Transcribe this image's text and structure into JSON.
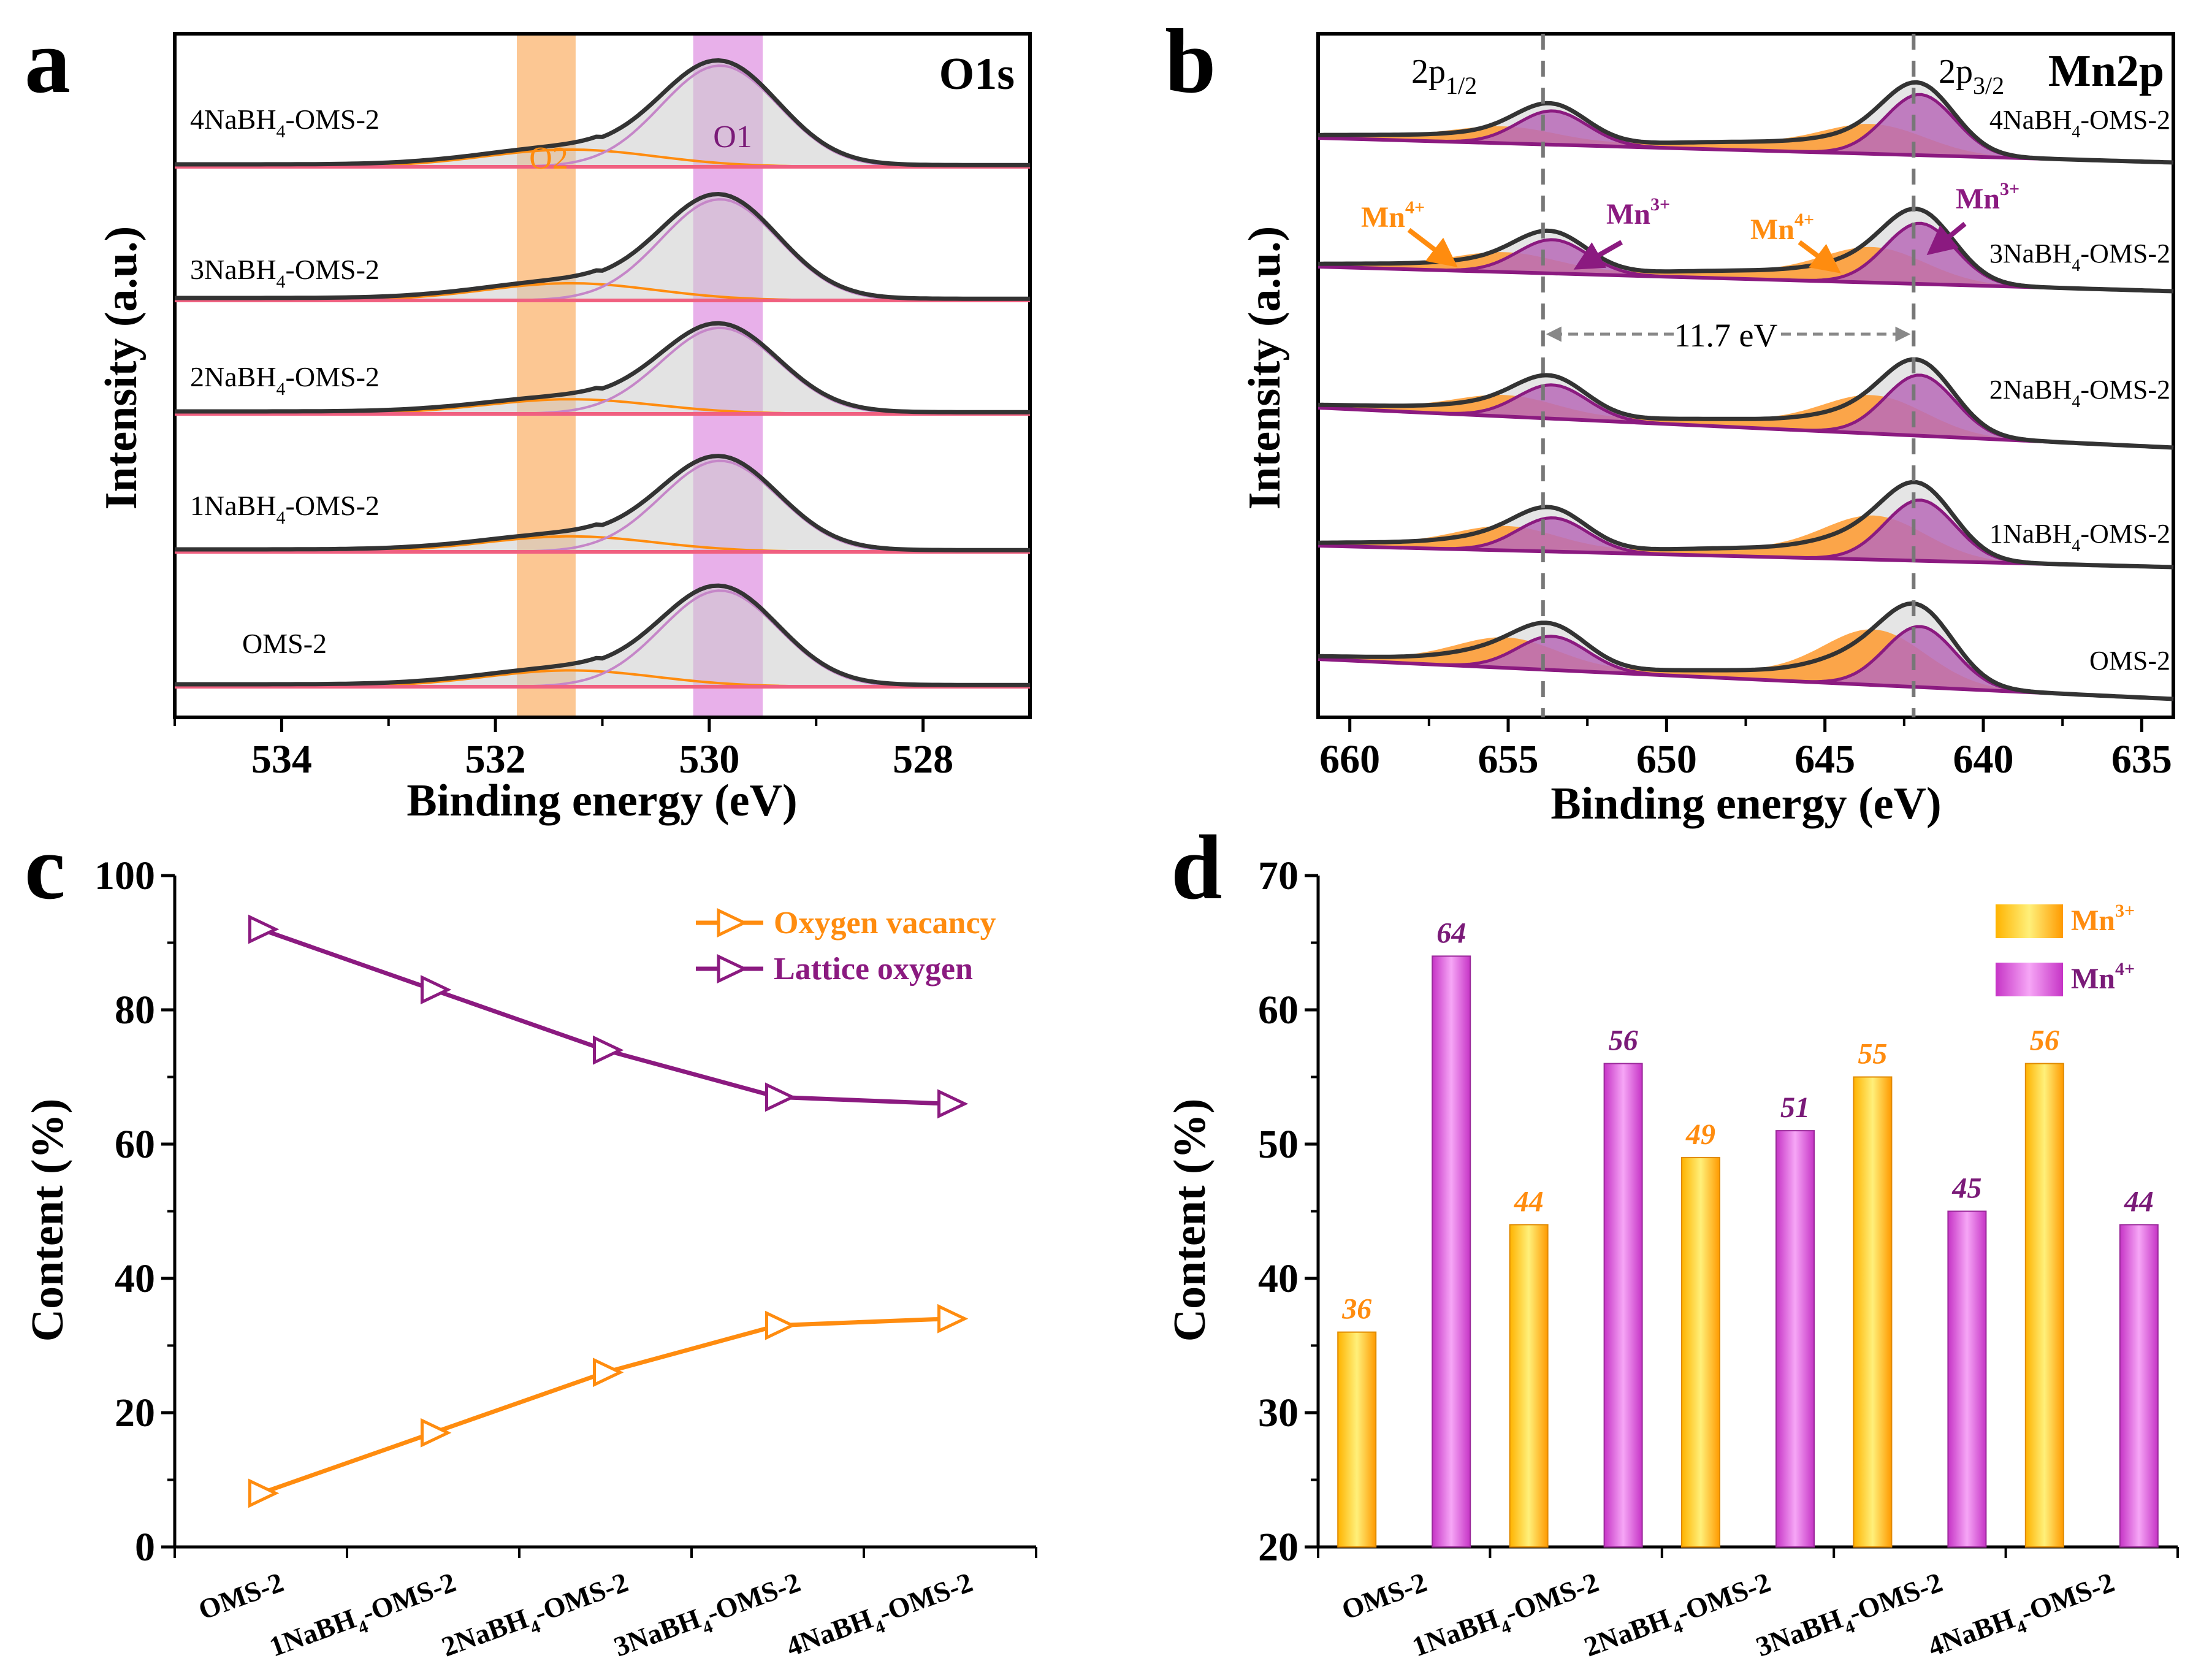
{
  "panels": {
    "a": {
      "label": "a",
      "element": "O1s",
      "xlabel": "Binding energy (eV)",
      "ylabel": "Intensity (a.u.)",
      "xlim": [
        535,
        527
      ],
      "ticks": [
        534,
        532,
        530,
        528
      ],
      "tick_labels": [
        "534",
        "532",
        "530",
        "528"
      ],
      "band_O2": [
        531.8,
        531.25
      ],
      "band_O1": [
        530.15,
        529.5
      ],
      "band_O2_label": "O2",
      "band_O1_label": "O1",
      "samples": [
        {
          "prefix": "4NaBH",
          "sub": "4",
          "suffix": "-OMS-2",
          "peak_height": 1.0
        },
        {
          "prefix": "3NaBH",
          "sub": "4",
          "suffix": "-OMS-2",
          "peak_height": 1.0
        },
        {
          "prefix": "2NaBH",
          "sub": "4",
          "suffix": "-OMS-2",
          "peak_height": 0.85
        },
        {
          "prefix": "1NaBH",
          "sub": "4",
          "suffix": "-OMS-2",
          "peak_height": 0.9
        },
        {
          "prefix": "OMS-2",
          "sub": "",
          "suffix": "",
          "peak_height": 0.95
        }
      ]
    },
    "b": {
      "label": "b",
      "element": "Mn2p",
      "xlabel": "Binding energy (eV)",
      "ylabel": "Intensity (a.u.)",
      "xlim": [
        661,
        634
      ],
      "ticks": [
        660,
        655,
        650,
        645,
        640,
        635
      ],
      "tick_labels": [
        "660",
        "655",
        "650",
        "645",
        "640",
        "635"
      ],
      "line_2p12": 653.9,
      "line_2p32": 642.2,
      "label_2p12_main": "2p",
      "label_2p12_sub": "1/2",
      "label_2p32_main": "2p",
      "label_2p32_sub": "3/2",
      "split_label": "11.7 eV",
      "mn4_main": "Mn",
      "mn4_sup": "4+",
      "mn3_main": "Mn",
      "mn3_sup": "3+",
      "samples": [
        {
          "prefix": "4NaBH",
          "sub": "4",
          "suffix": "-OMS-2"
        },
        {
          "prefix": "3NaBH",
          "sub": "4",
          "suffix": "-OMS-2"
        },
        {
          "prefix": "2NaBH",
          "sub": "4",
          "suffix": "-OMS-2"
        },
        {
          "prefix": "1NaBH",
          "sub": "4",
          "suffix": "-OMS-2"
        },
        {
          "prefix": "OMS-2",
          "sub": "",
          "suffix": ""
        }
      ]
    }
  },
  "chart_data": [
    {
      "panel": "c",
      "type": "line",
      "ylabel": "Content (%)",
      "ylim": [
        0,
        100
      ],
      "yticks": [
        0,
        20,
        40,
        60,
        80,
        100
      ],
      "categories": [
        {
          "main": "OMS-2",
          "sub": "",
          "rest": ""
        },
        {
          "main": "1NaBH",
          "sub": "4",
          "rest": "-OMS-2"
        },
        {
          "main": "2NaBH",
          "sub": "4",
          "rest": "-OMS-2"
        },
        {
          "main": "3NaBH",
          "sub": "4",
          "rest": "-OMS-2"
        },
        {
          "main": "4NaBH",
          "sub": "4",
          "rest": "-OMS-2"
        }
      ],
      "series": [
        {
          "name": "Oxygen vacancy",
          "color": "#ff8c0f",
          "values": [
            8,
            17,
            26,
            33,
            34
          ]
        },
        {
          "name": "Lattice oxygen",
          "color": "#8b1a80",
          "values": [
            92,
            83,
            74,
            67,
            66
          ]
        }
      ],
      "legend": "top-right"
    },
    {
      "panel": "d",
      "type": "bar",
      "ylabel": "Content (%)",
      "ylim": [
        20,
        70
      ],
      "yticks": [
        20,
        30,
        40,
        50,
        60,
        70
      ],
      "categories": [
        {
          "main": "OMS-2",
          "sub": "",
          "rest": ""
        },
        {
          "main": "1NaBH",
          "sub": "4",
          "rest": "-OMS-2"
        },
        {
          "main": "2NaBH",
          "sub": "4",
          "rest": "-OMS-2"
        },
        {
          "main": "3NaBH",
          "sub": "4",
          "rest": "-OMS-2"
        },
        {
          "main": "4NaBH",
          "sub": "4",
          "rest": "-OMS-2"
        }
      ],
      "series": [
        {
          "name": "Mn",
          "sup": "3+",
          "color": "#ffb300",
          "values": [
            36,
            44,
            49,
            55,
            56
          ],
          "labels": [
            "36",
            "44",
            "49",
            "55",
            "56"
          ]
        },
        {
          "name": "Mn",
          "sup": "4+",
          "color": "#d64ad6",
          "values": [
            64,
            56,
            51,
            45,
            44
          ],
          "labels": [
            "64",
            "56",
            "51",
            "45",
            "44"
          ]
        }
      ],
      "legend": "top-right"
    }
  ],
  "colors": {
    "orange": "#ff8c0f",
    "purple": "#8b1a80",
    "magenta": "#d64ad6",
    "label_purple": "#7a1a78",
    "dark": "#333333",
    "gray_fill": "#cccccc",
    "base_pink": "#f06080"
  }
}
